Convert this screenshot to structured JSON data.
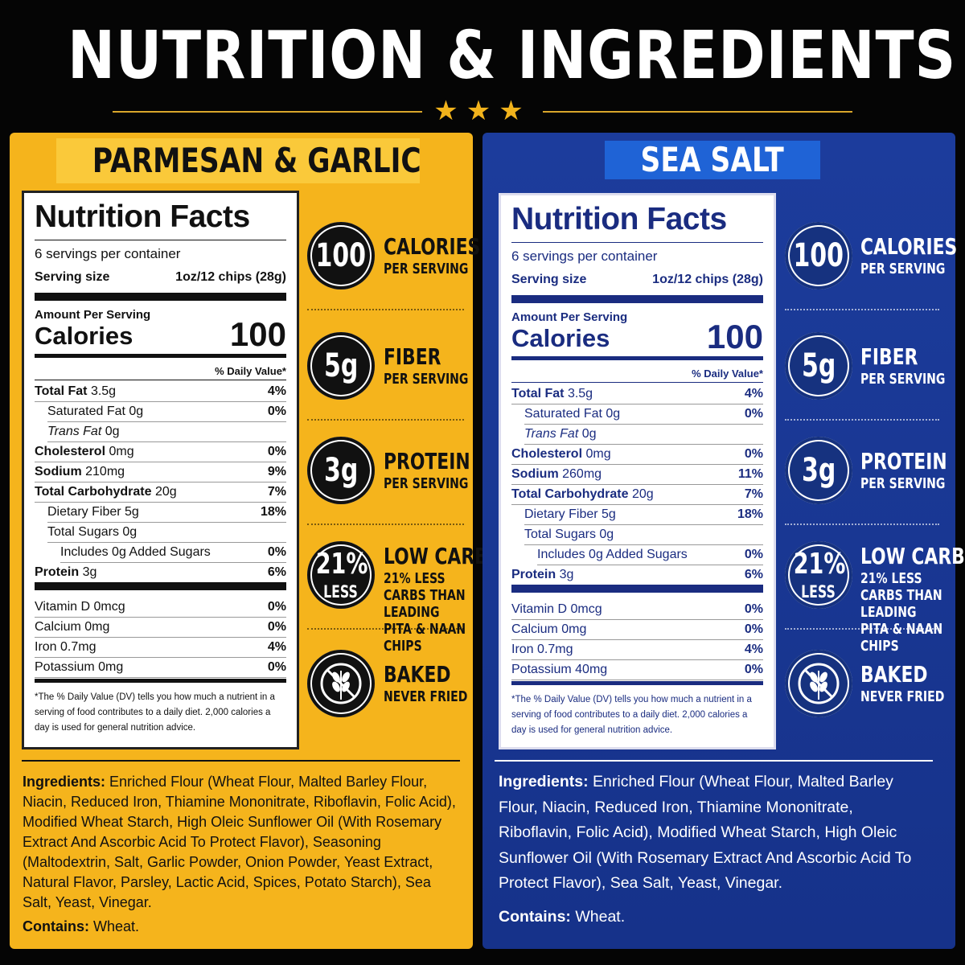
{
  "header": {
    "title": "NUTRITION & INGREDIENTS"
  },
  "panels": [
    {
      "name": "PARMESAN & GARLIC",
      "nutrition_facts": {
        "title": "Nutrition Facts",
        "servings": "6 servings per container",
        "serving_size_label": "Serving size",
        "serving_size": "1oz/12 chips (28g)",
        "amount_per_serving": "Amount Per Serving",
        "calories_label": "Calories",
        "calories": "100",
        "daily_value_header": "% Daily Value*",
        "rows": [
          {
            "label": "Total Fat",
            "amount": "3.5g",
            "dv": "4%"
          },
          {
            "label": "Saturated Fat",
            "amount": "0g",
            "dv": "0%"
          },
          {
            "label": "Trans Fat",
            "amount": "0g"
          },
          {
            "label": "Cholesterol",
            "amount": "0mg",
            "dv": "0%"
          },
          {
            "label": "Sodium",
            "amount": "210mg",
            "dv": "9%"
          },
          {
            "label": "Total Carbohydrate",
            "amount": "20g",
            "dv": "7%"
          },
          {
            "label": "Dietary Fiber",
            "amount": "5g",
            "dv": "18%"
          },
          {
            "label": "Total Sugars",
            "amount": "0g"
          },
          {
            "label": "Includes 0g Added Sugars",
            "dv": "0%"
          },
          {
            "label": "Protein",
            "amount": "3g",
            "dv": "6%"
          }
        ],
        "vitamins": [
          {
            "label": "Vitamin D",
            "amount": "0mcg",
            "dv": "0%"
          },
          {
            "label": "Calcium",
            "amount": "0mg",
            "dv": "0%"
          },
          {
            "label": "Iron",
            "amount": "0.7mg",
            "dv": "4%"
          },
          {
            "label": "Potassium",
            "amount": "0mg",
            "dv": "0%"
          }
        ],
        "footnote": "*The % Daily Value (DV) tells you how much a nutrient in a serving of food contributes to a daily diet. 2,000 calories a day is used for general nutrition advice."
      },
      "badges": [
        {
          "value": "100",
          "label": "CALORIES",
          "sub": "PER SERVING"
        },
        {
          "value": "5g",
          "label": "FIBER",
          "sub": "PER SERVING"
        },
        {
          "value": "3g",
          "label": "PROTEIN",
          "sub": "PER SERVING"
        },
        {
          "value": "21%",
          "value_sub": "LESS",
          "label": "LOW CARB",
          "sub": "21% LESS CARBS THAN LEADING PITA & NAAN CHIPS"
        },
        {
          "label": "BAKED",
          "sub": "NEVER FRIED"
        }
      ],
      "ingredients_label": "Ingredients:",
      "ingredients": "Enriched Flour (Wheat Flour, Malted Barley Flour, Niacin, Reduced Iron, Thiamine Mononitrate, Riboflavin, Folic Acid), Modified Wheat Starch, High Oleic Sunflower Oil (With Rosemary Extract And Ascorbic Acid To Protect Flavor), Seasoning (Maltodextrin, Salt, Garlic Powder, Onion Powder, Yeast Extract, Natural Flavor, Parsley, Lactic Acid, Spices, Potato Starch), Sea Salt, Yeast, Vinegar.",
      "contains_label": "Contains:",
      "contains": "Wheat."
    },
    {
      "name": "SEA SALT",
      "nutrition_facts": {
        "title": "Nutrition Facts",
        "servings": "6 servings per container",
        "serving_size_label": "Serving size",
        "serving_size": "1oz/12 chips (28g)",
        "amount_per_serving": "Amount Per Serving",
        "calories_label": "Calories",
        "calories": "100",
        "daily_value_header": "% Daily Value*",
        "rows": [
          {
            "label": "Total Fat",
            "amount": "3.5g",
            "dv": "4%"
          },
          {
            "label": "Saturated Fat",
            "amount": "0g",
            "dv": "0%"
          },
          {
            "label": "Trans Fat",
            "amount": "0g"
          },
          {
            "label": "Cholesterol",
            "amount": "0mg",
            "dv": "0%"
          },
          {
            "label": "Sodium",
            "amount": "260mg",
            "dv": "11%"
          },
          {
            "label": "Total Carbohydrate",
            "amount": "20g",
            "dv": "7%"
          },
          {
            "label": "Dietary Fiber",
            "amount": "5g",
            "dv": "18%"
          },
          {
            "label": "Total Sugars",
            "amount": "0g"
          },
          {
            "label": "Includes 0g Added Sugars",
            "dv": "0%"
          },
          {
            "label": "Protein",
            "amount": "3g",
            "dv": "6%"
          }
        ],
        "vitamins": [
          {
            "label": "Vitamin D",
            "amount": "0mcg",
            "dv": "0%"
          },
          {
            "label": "Calcium",
            "amount": "0mg",
            "dv": "0%"
          },
          {
            "label": "Iron",
            "amount": "0.7mg",
            "dv": "4%"
          },
          {
            "label": "Potassium",
            "amount": "40mg",
            "dv": "0%"
          }
        ],
        "footnote": "*The % Daily Value (DV) tells you how much a nutrient in a serving of food contributes to a daily diet. 2,000 calories a day is used for general nutrition advice."
      },
      "badges": [
        {
          "value": "100",
          "label": "CALORIES",
          "sub": "PER SERVING"
        },
        {
          "value": "5g",
          "label": "FIBER",
          "sub": "PER SERVING"
        },
        {
          "value": "3g",
          "label": "PROTEIN",
          "sub": "PER SERVING"
        },
        {
          "value": "21%",
          "value_sub": "LESS",
          "label": "LOW CARB",
          "sub": "21% LESS CARBS THAN LEADING PITA & NAAN CHIPS"
        },
        {
          "label": "BAKED",
          "sub": "NEVER FRIED"
        }
      ],
      "ingredients_label": "Ingredients:",
      "ingredients": "Enriched Flour (Wheat Flour, Malted Barley Flour, Niacin, Reduced Iron, Thiamine Mononitrate, Riboflavin, Folic Acid), Modified Wheat Starch, High Oleic Sunflower Oil (With Rosemary Extract And Ascorbic Acid To Protect Flavor), Sea Salt, Yeast, Vinegar.",
      "contains_label": "Contains:",
      "contains": "Wheat."
    }
  ]
}
